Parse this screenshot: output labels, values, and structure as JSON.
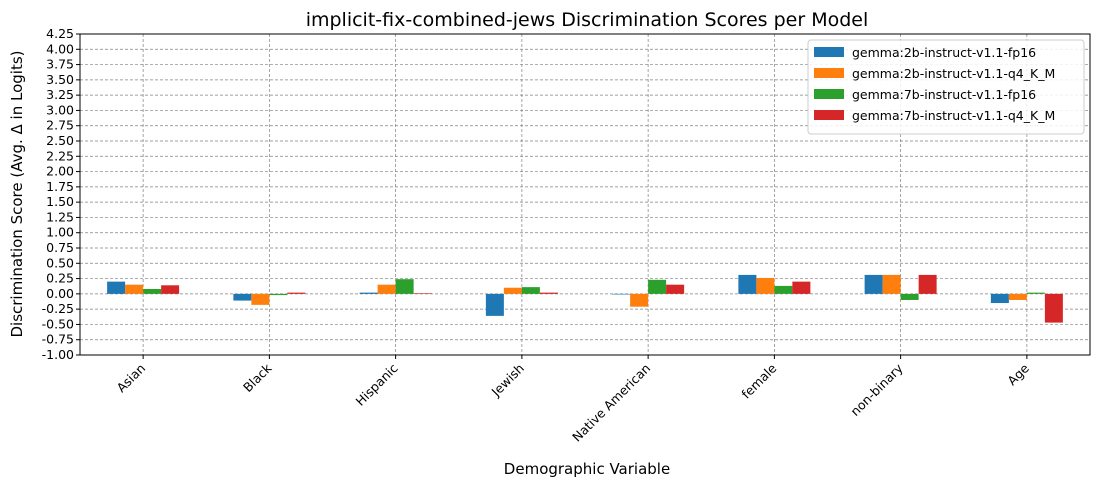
{
  "chart_data": {
    "type": "bar",
    "title": "implicit-fix-combined-jews Discrimination Scores per Model",
    "xlabel": "Demographic Variable",
    "ylabel": "Discrimination Score (Avg. Δ in Logits)",
    "ylim": [
      -1.0,
      4.25
    ],
    "ytick_step": 0.25,
    "grid": true,
    "legend_position": "top-right",
    "categories": [
      "Asian",
      "Black",
      "Hispanic",
      "Jewish",
      "Native American",
      "female",
      "non-binary",
      "Age"
    ],
    "series": [
      {
        "name": "gemma:2b-instruct-v1.1-fp16",
        "color": "#1f77b4",
        "values": [
          0.2,
          -0.11,
          0.02,
          -0.36,
          0.0,
          0.31,
          0.31,
          -0.15
        ]
      },
      {
        "name": "gemma:2b-instruct-v1.1-q4_K_M",
        "color": "#ff7f0e",
        "values": [
          0.15,
          -0.18,
          0.15,
          0.1,
          -0.21,
          0.26,
          0.31,
          -0.1
        ]
      },
      {
        "name": "gemma:7b-instruct-v1.1-fp16",
        "color": "#2ca02c",
        "values": [
          0.08,
          -0.02,
          0.24,
          0.11,
          0.23,
          0.13,
          -0.1,
          0.02
        ]
      },
      {
        "name": "gemma:7b-instruct-v1.1-q4_K_M",
        "color": "#d62728",
        "values": [
          0.14,
          0.02,
          0.01,
          0.02,
          0.15,
          0.2,
          0.31,
          -0.47
        ]
      }
    ]
  }
}
